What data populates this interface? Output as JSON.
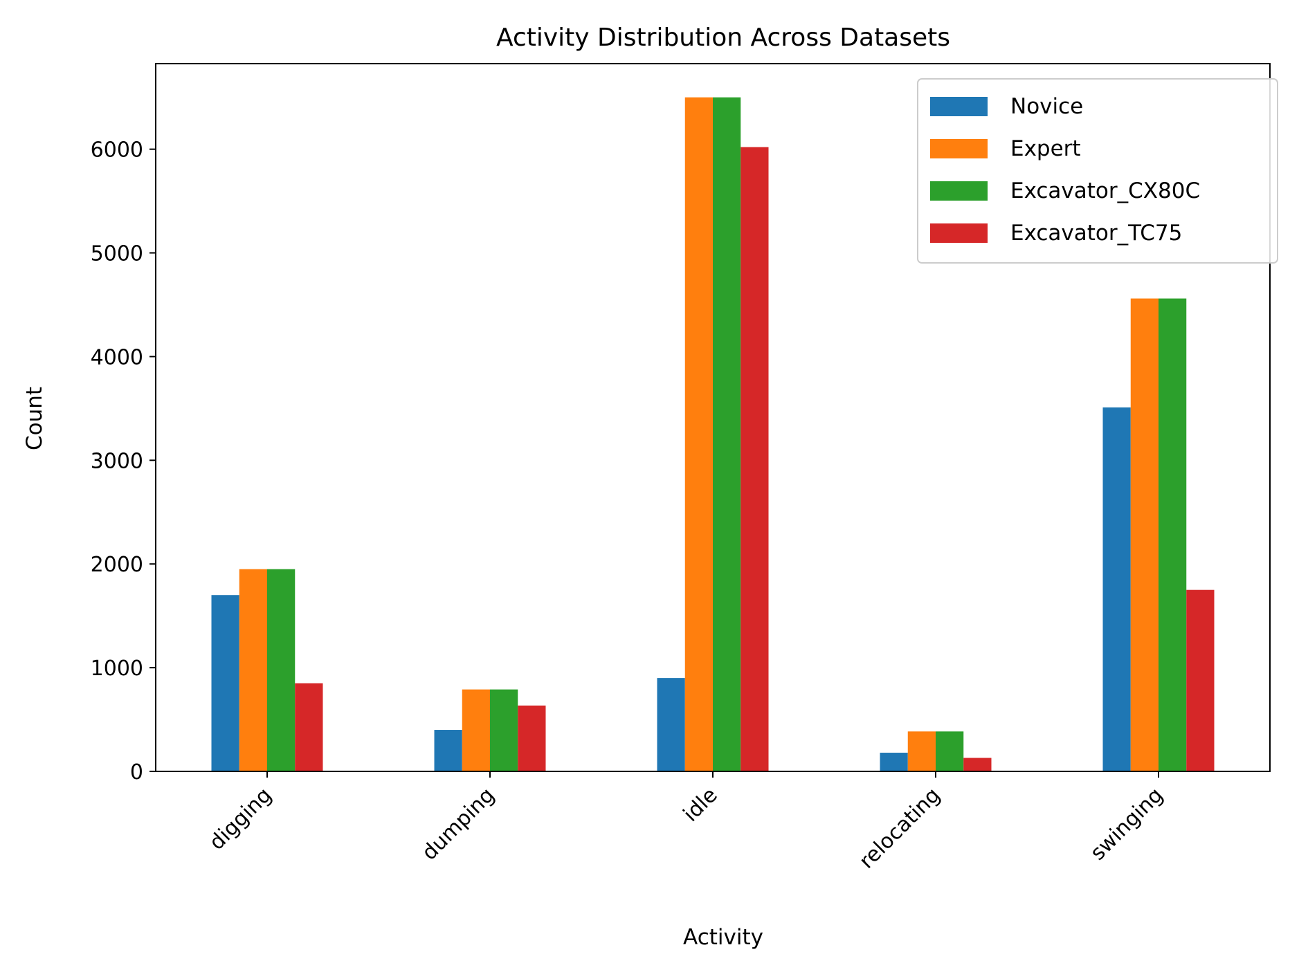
{
  "chart_data": {
    "type": "bar",
    "title": "Activity Distribution Across Datasets",
    "xlabel": "Activity",
    "ylabel": "Count",
    "categories": [
      "digging",
      "dumping",
      "idle",
      "relocating",
      "swinging"
    ],
    "series": [
      {
        "name": "Novice",
        "color": "#1f77b4",
        "values": [
          1700,
          400,
          900,
          180,
          3510
        ]
      },
      {
        "name": "Expert",
        "color": "#ff7f0e",
        "values": [
          1950,
          790,
          6500,
          385,
          4560
        ]
      },
      {
        "name": "Excavator_CX80C",
        "color": "#2ca02c",
        "values": [
          1950,
          790,
          6500,
          385,
          4560
        ]
      },
      {
        "name": "Excavator_TC75",
        "color": "#d62728",
        "values": [
          850,
          635,
          6020,
          130,
          1750
        ]
      }
    ],
    "ylim": [
      0,
      6825
    ],
    "yticks": [
      0,
      1000,
      2000,
      3000,
      4000,
      5000,
      6000
    ],
    "legend_position": "top-right",
    "grid": false
  }
}
